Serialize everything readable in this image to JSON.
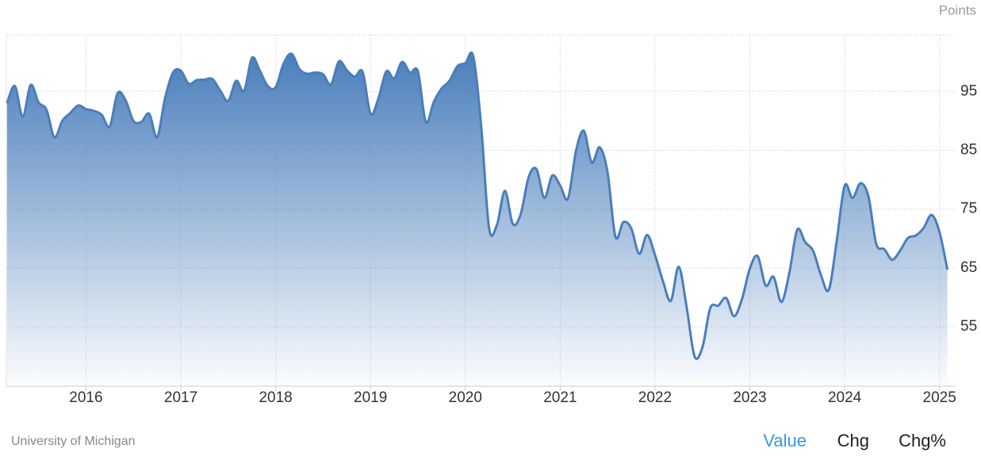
{
  "chart_data": {
    "type": "area",
    "ylabel": "Points",
    "x": [
      2015.167,
      2015.25,
      2015.333,
      2015.417,
      2015.5,
      2015.583,
      2015.667,
      2015.75,
      2015.833,
      2015.917,
      2016,
      2016.083,
      2016.167,
      2016.25,
      2016.333,
      2016.417,
      2016.5,
      2016.583,
      2016.667,
      2016.75,
      2016.833,
      2016.917,
      2017,
      2017.083,
      2017.167,
      2017.25,
      2017.333,
      2017.417,
      2017.5,
      2017.583,
      2017.667,
      2017.75,
      2017.833,
      2017.917,
      2018,
      2018.083,
      2018.167,
      2018.25,
      2018.333,
      2018.417,
      2018.5,
      2018.583,
      2018.667,
      2018.75,
      2018.833,
      2018.917,
      2019,
      2019.083,
      2019.167,
      2019.25,
      2019.333,
      2019.417,
      2019.5,
      2019.583,
      2019.667,
      2019.75,
      2019.833,
      2019.917,
      2020,
      2020.083,
      2020.167,
      2020.25,
      2020.333,
      2020.417,
      2020.5,
      2020.583,
      2020.667,
      2020.75,
      2020.833,
      2020.917,
      2021,
      2021.083,
      2021.167,
      2021.25,
      2021.333,
      2021.417,
      2021.5,
      2021.583,
      2021.667,
      2021.75,
      2021.833,
      2021.917,
      2022,
      2022.083,
      2022.167,
      2022.25,
      2022.333,
      2022.417,
      2022.5,
      2022.583,
      2022.667,
      2022.75,
      2022.833,
      2022.917,
      2023,
      2023.083,
      2023.167,
      2023.25,
      2023.333,
      2023.417,
      2023.5,
      2023.583,
      2023.667,
      2023.75,
      2023.833,
      2023.917,
      2024,
      2024.083,
      2024.167,
      2024.25,
      2024.333,
      2024.417,
      2024.5,
      2024.583,
      2024.667,
      2024.75,
      2024.833,
      2024.917,
      2025,
      2025.083
    ],
    "series": [
      {
        "name": "Value",
        "color": "#4a7ebb",
        "values": [
          93,
          95.9,
          90.7,
          96.1,
          93.1,
          91.9,
          87.2,
          90,
          91.3,
          92.6,
          92,
          91.7,
          91,
          89,
          94.7,
          93.5,
          90,
          89.8,
          91.2,
          87.2,
          93.8,
          98.2,
          98.5,
          96.3,
          96.9,
          97,
          97.1,
          95.1,
          93.4,
          96.8,
          95.1,
          100.7,
          98.5,
          95.9,
          95.7,
          99.7,
          101.4,
          98.8,
          98,
          98.2,
          97.9,
          96.2,
          100.1,
          98.6,
          97.5,
          98.3,
          91.2,
          93.8,
          98.4,
          97.2,
          100,
          98.2,
          98.4,
          89.8,
          93.2,
          95.5,
          96.8,
          99.3,
          99.8,
          101,
          89.1,
          71.8,
          72.3,
          78.1,
          72.5,
          74.1,
          80.4,
          81.8,
          76.9,
          80.7,
          79,
          76.8,
          84.9,
          88.3,
          82.9,
          85.5,
          81.2,
          70.3,
          72.8,
          71.7,
          67.4,
          70.6,
          67.2,
          62.8,
          59.4,
          65.2,
          58.4,
          50,
          51.5,
          58.2,
          58.6,
          59.9,
          56.8,
          59.7,
          64.9,
          67,
          62,
          63.5,
          59.2,
          64.2,
          71.5,
          69.4,
          67.9,
          63.8,
          61.3,
          69.7,
          79,
          76.9,
          79.4,
          77.2,
          69.1,
          68.2,
          66.4,
          67.9,
          70.1,
          70.5,
          71.8,
          74,
          71.1,
          64.7
        ]
      }
    ],
    "xlim": [
      2015.16,
      2025.17
    ],
    "xticks": [
      2016,
      2017,
      2018,
      2019,
      2020,
      2021,
      2022,
      2023,
      2024,
      2025
    ],
    "ylim": [
      44.9,
      104.6
    ],
    "yticks": [
      55,
      65,
      75,
      85,
      95
    ],
    "grid": true
  },
  "footer": {
    "source": "University of Michigan",
    "tabs": [
      "Value",
      "Chg",
      "Chg%"
    ]
  }
}
